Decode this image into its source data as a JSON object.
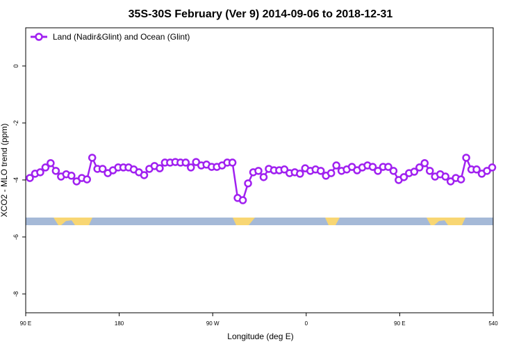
{
  "chart_data": {
    "type": "line",
    "title": "35S-30S February (Ver 9)   2014-09-06 to 2018-12-31",
    "x_label": "Longitude (deg E)",
    "y_label": "XCO2 - MLO trend (ppm)",
    "x": [
      94,
      99,
      104,
      109,
      114,
      119,
      124,
      129,
      134,
      139,
      144,
      149,
      154,
      159,
      164,
      169,
      174,
      179,
      184,
      189,
      194,
      199,
      204,
      209,
      214,
      219,
      224,
      229,
      234,
      239,
      244,
      249,
      254,
      259,
      264,
      269,
      274,
      279,
      284,
      289,
      294,
      299,
      304,
      309,
      314,
      319,
      324,
      329,
      334,
      339,
      344,
      349,
      354,
      359,
      364,
      369,
      374,
      379,
      384,
      389,
      394,
      399,
      404,
      409,
      414,
      419,
      424,
      429,
      434,
      439,
      444,
      449,
      454,
      459,
      464,
      469,
      474,
      479,
      484,
      489,
      494,
      499,
      504,
      509,
      514,
      519,
      524,
      529,
      534,
      539
    ],
    "series": [
      {
        "name": "Land (Nadir&Glint) and Ocean (Glint)",
        "color": "#a020f0",
        "values": [
          -3.93,
          -3.78,
          -3.73,
          -3.56,
          -3.41,
          -3.68,
          -3.88,
          -3.8,
          -3.85,
          -4.05,
          -3.93,
          -3.98,
          -3.22,
          -3.61,
          -3.61,
          -3.76,
          -3.66,
          -3.56,
          -3.56,
          -3.56,
          -3.63,
          -3.73,
          -3.83,
          -3.61,
          -3.51,
          -3.59,
          -3.39,
          -3.39,
          -3.37,
          -3.39,
          -3.39,
          -3.56,
          -3.37,
          -3.49,
          -3.46,
          -3.54,
          -3.54,
          -3.49,
          -3.39,
          -3.39,
          -4.63,
          -4.71,
          -4.12,
          -3.73,
          -3.68,
          -3.9,
          -3.61,
          -3.66,
          -3.66,
          -3.63,
          -3.76,
          -3.73,
          -3.78,
          -3.59,
          -3.68,
          -3.63,
          -3.68,
          -3.85,
          -3.76,
          -3.49,
          -3.68,
          -3.63,
          -3.54,
          -3.66,
          -3.56,
          -3.49,
          -3.54,
          -3.68,
          -3.54,
          -3.54,
          -3.68,
          -4.0,
          -3.9,
          -3.76,
          -3.71,
          -3.56,
          -3.41,
          -3.68,
          -3.88,
          -3.8,
          -3.88,
          -4.05,
          -3.93,
          -3.98,
          -3.22,
          -3.63,
          -3.63,
          -3.78,
          -3.68,
          -3.56
        ]
      }
    ],
    "xlim": [
      90,
      540
    ],
    "xticks": [
      {
        "value": 90,
        "label": "90 E"
      },
      180,
      {
        "value": 270,
        "label": "90 W"
      },
      {
        "value": 360,
        "label": "0"
      },
      {
        "value": 450,
        "label": "90 E"
      },
      540
    ],
    "ylim": [
      -8.66,
      1.34
    ],
    "yticks": [
      0,
      -2,
      -4,
      -6,
      -8
    ],
    "legend": "top-left"
  }
}
